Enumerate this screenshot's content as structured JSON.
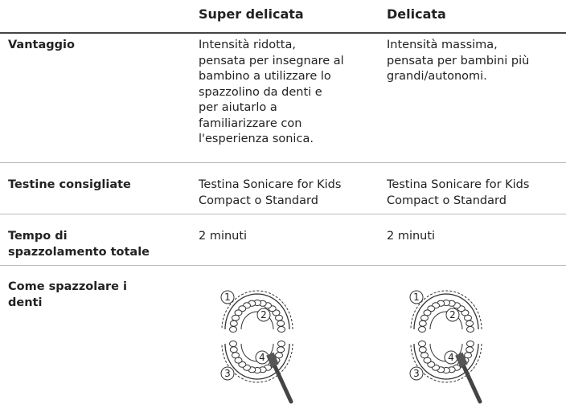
{
  "table": {
    "header": [
      "Super delicata",
      "Delicata"
    ],
    "rows": [
      {
        "label": [
          "Vantaggio"
        ],
        "cells": [
          [
            "Intensità ridotta,",
            "pensata per insegnare al",
            "bambino a utilizzare lo",
            "spazzolino da denti e",
            "per aiutarlo a",
            "familiarizzare con",
            "l'esperienza sonica."
          ],
          [
            "Intensità massima,",
            "pensata per bambini più",
            "grandi/autonomi."
          ]
        ]
      },
      {
        "label": [
          "Testine consigliate"
        ],
        "cells": [
          [
            "Testina Sonicare for Kids",
            "Compact o Standard"
          ],
          [
            "Testina Sonicare for Kids",
            "Compact o Standard"
          ]
        ]
      },
      {
        "label": [
          "Tempo di",
          "spazzolamento totale"
        ],
        "cells": [
          [
            "2 minuti"
          ],
          [
            "2 minuti"
          ]
        ]
      },
      {
        "label": [
          "Come spazzolare i",
          "denti"
        ],
        "cells": []
      }
    ],
    "diagram_steps": [
      "1",
      "2",
      "3",
      "4"
    ]
  }
}
